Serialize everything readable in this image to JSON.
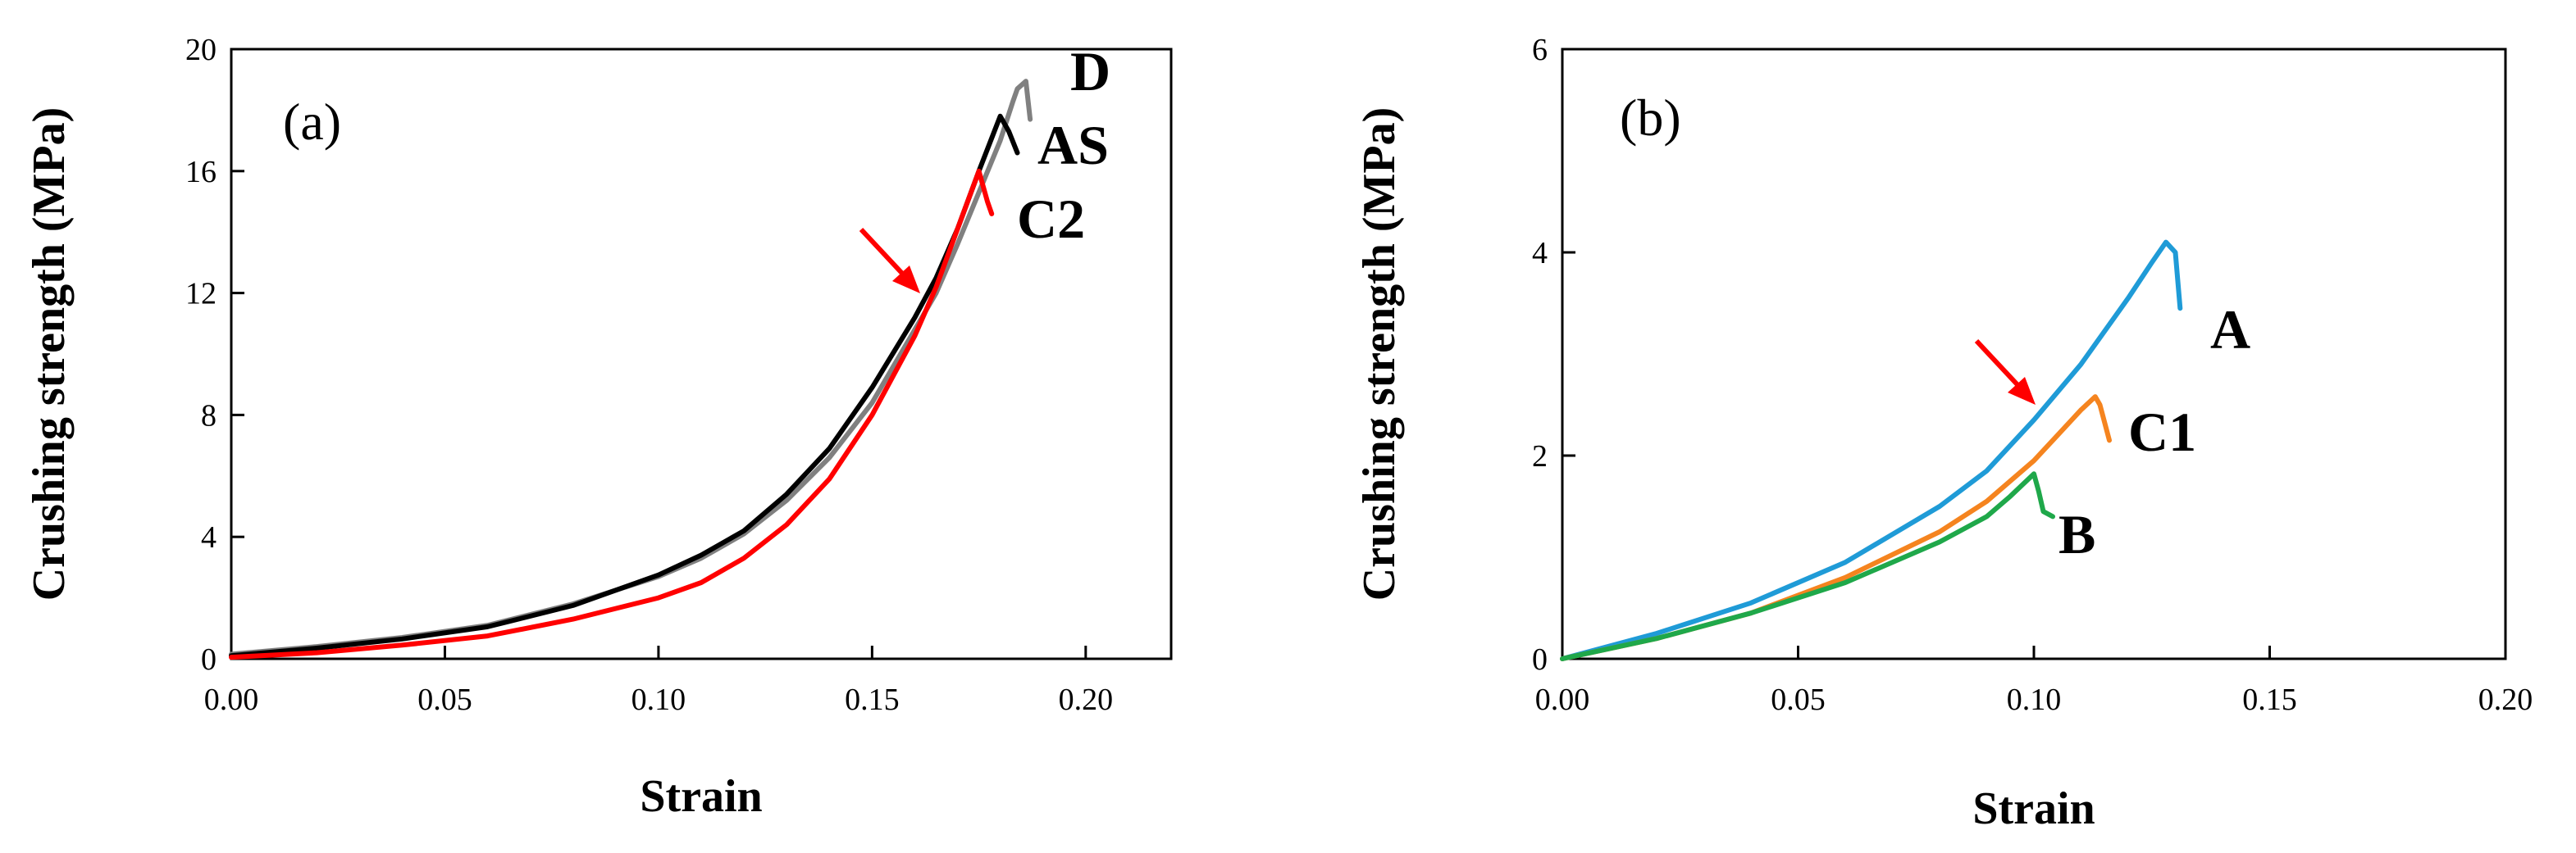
{
  "chart_data": [
    {
      "panel": "(a)",
      "type": "line",
      "xlabel": "Strain",
      "ylabel": "Crushing strength (MPa)",
      "xlim": [
        0,
        0.22
      ],
      "ylim": [
        0,
        20
      ],
      "xticks": [
        0,
        0.05,
        0.1,
        0.15,
        0.2
      ],
      "xtick_labels": [
        "0.00",
        "0.05",
        "0.10",
        "0.15",
        "0.20"
      ],
      "yticks": [
        0,
        4,
        8,
        12,
        16,
        20
      ],
      "ytick_labels": [
        "0",
        "4",
        "8",
        "12",
        "16",
        "20"
      ],
      "series": [
        {
          "name": "D",
          "color": "#808080",
          "x": [
            0.0,
            0.02,
            0.04,
            0.06,
            0.08,
            0.1,
            0.11,
            0.12,
            0.13,
            0.14,
            0.15,
            0.16,
            0.165,
            0.17,
            0.175,
            0.18,
            0.183,
            0.184,
            0.186,
            0.187
          ],
          "y": [
            0.15,
            0.4,
            0.7,
            1.1,
            1.8,
            2.7,
            3.3,
            4.1,
            5.2,
            6.6,
            8.4,
            10.8,
            12.0,
            13.6,
            15.3,
            17.0,
            18.3,
            18.7,
            18.95,
            17.7
          ]
        },
        {
          "name": "AS",
          "color": "#000000",
          "x": [
            0.0,
            0.02,
            0.04,
            0.06,
            0.08,
            0.1,
            0.11,
            0.12,
            0.13,
            0.14,
            0.15,
            0.16,
            0.165,
            0.17,
            0.175,
            0.18,
            0.182,
            0.184
          ],
          "y": [
            0.1,
            0.35,
            0.65,
            1.05,
            1.75,
            2.75,
            3.4,
            4.2,
            5.4,
            6.9,
            8.9,
            11.2,
            12.5,
            14.1,
            16.0,
            17.8,
            17.3,
            16.6
          ]
        },
        {
          "name": "C2",
          "color": "#ff0000",
          "x": [
            0.0,
            0.02,
            0.04,
            0.06,
            0.08,
            0.1,
            0.11,
            0.12,
            0.13,
            0.14,
            0.15,
            0.16,
            0.165,
            0.17,
            0.175,
            0.177,
            0.178
          ],
          "y": [
            0.05,
            0.2,
            0.45,
            0.75,
            1.3,
            2.0,
            2.5,
            3.3,
            4.4,
            5.9,
            8.0,
            10.6,
            12.2,
            14.1,
            16.0,
            15.0,
            14.6
          ]
        }
      ],
      "annotation": "red arrow near strain 0.16, 11.8 MPa"
    },
    {
      "panel": "(b)",
      "type": "line",
      "xlabel": "Strain",
      "ylabel": "Crushing strength (MPa)",
      "xlim": [
        0,
        0.2
      ],
      "ylim": [
        0,
        6
      ],
      "xticks": [
        0,
        0.05,
        0.1,
        0.15,
        0.2
      ],
      "xtick_labels": [
        "0.00",
        "0.05",
        "0.10",
        "0.15",
        "0.20"
      ],
      "yticks": [
        0,
        2,
        4,
        6
      ],
      "ytick_labels": [
        "0",
        "2",
        "4",
        "6"
      ],
      "series": [
        {
          "name": "A",
          "color": "#1f9bd7",
          "x": [
            0.0,
            0.02,
            0.04,
            0.06,
            0.08,
            0.09,
            0.1,
            0.11,
            0.12,
            0.125,
            0.128,
            0.13,
            0.131
          ],
          "y": [
            0.0,
            0.25,
            0.55,
            0.95,
            1.5,
            1.85,
            2.35,
            2.9,
            3.55,
            3.9,
            4.1,
            4.0,
            3.45
          ]
        },
        {
          "name": "C1",
          "color": "#f5841f",
          "x": [
            0.0,
            0.02,
            0.04,
            0.06,
            0.08,
            0.09,
            0.1,
            0.105,
            0.11,
            0.113,
            0.114,
            0.116
          ],
          "y": [
            0.0,
            0.2,
            0.45,
            0.8,
            1.25,
            1.55,
            1.95,
            2.2,
            2.45,
            2.58,
            2.5,
            2.15
          ]
        },
        {
          "name": "B",
          "color": "#1fa84a",
          "x": [
            0.0,
            0.02,
            0.04,
            0.06,
            0.08,
            0.09,
            0.095,
            0.1,
            0.101,
            0.102,
            0.104
          ],
          "y": [
            0.0,
            0.2,
            0.45,
            0.75,
            1.15,
            1.4,
            1.6,
            1.82,
            1.65,
            1.45,
            1.4
          ]
        }
      ],
      "annotation": "red arrow near strain 0.10, 2.4 MPa"
    }
  ]
}
